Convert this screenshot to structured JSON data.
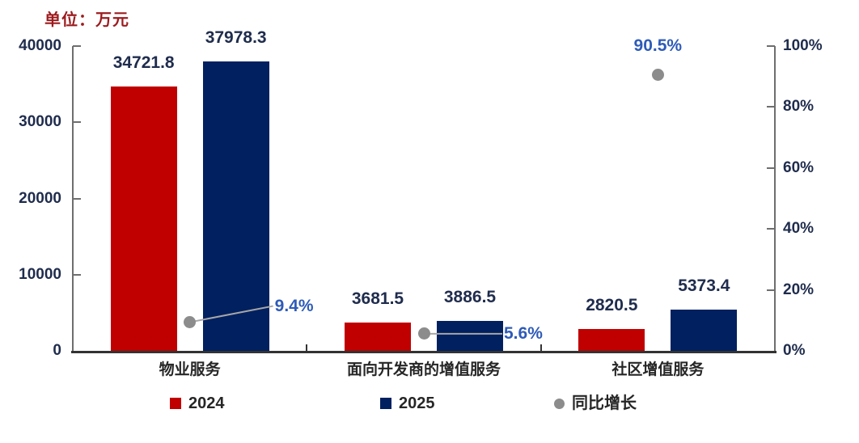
{
  "unit_label": "单位：万元",
  "colors": {
    "bar_2024": "#c00000",
    "bar_2025": "#002060",
    "growth_dot": "#8c8c8c",
    "leader_line": "#a6a6a6",
    "pct_label_blue": "#2e5bb8",
    "axis_number_text": "#1f2c4d",
    "unit_label_red": "#9c1b1e",
    "category_text": "#262626",
    "axis_line_side": "#6e6e6e",
    "axis_line_bottom": "#333333"
  },
  "chart_data": {
    "type": "bar",
    "title": "单位：万元",
    "categories": [
      "物业服务",
      "面向开发商的增值服务",
      "社区增值服务"
    ],
    "series": [
      {
        "name": "2024",
        "type": "bar",
        "color_key": "bar_2024",
        "axis": "left",
        "values": [
          34721.8,
          3681.5,
          2820.5
        ],
        "value_labels": [
          "34721.8",
          "3681.5",
          "2820.5"
        ]
      },
      {
        "name": "2025",
        "type": "bar",
        "color_key": "bar_2025",
        "axis": "left",
        "values": [
          37978.3,
          3886.5,
          5373.4
        ],
        "value_labels": [
          "37978.3",
          "3886.5",
          "5373.4"
        ]
      },
      {
        "name": "同比增长",
        "type": "scatter",
        "color_key": "growth_dot",
        "axis": "right",
        "values": [
          9.4,
          5.6,
          90.5
        ],
        "point_labels": [
          "9.4%",
          "5.6%",
          "90.5%"
        ],
        "label_placement": [
          "leader-right-up",
          "leader-right-flat",
          "above"
        ]
      }
    ],
    "left_axis": {
      "min": 0,
      "max": 40000,
      "ticks": [
        0,
        10000,
        20000,
        30000,
        40000
      ],
      "tick_labels": [
        "0",
        "10000",
        "20000",
        "30000",
        "40000"
      ]
    },
    "right_axis": {
      "min": 0,
      "max": 100,
      "ticks": [
        0,
        20,
        40,
        60,
        80,
        100
      ],
      "tick_labels": [
        "0%",
        "20%",
        "40%",
        "60%",
        "80%",
        "100%"
      ]
    },
    "grid": false,
    "legend_position": "bottom",
    "legend": [
      {
        "label": "2024",
        "swatch": "square",
        "color_key": "bar_2024"
      },
      {
        "label": "2025",
        "swatch": "square",
        "color_key": "bar_2025"
      },
      {
        "label": "同比增长",
        "swatch": "circle",
        "color_key": "growth_dot"
      }
    ]
  }
}
